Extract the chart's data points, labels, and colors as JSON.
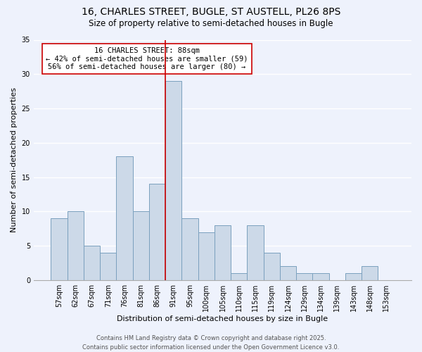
{
  "title": "16, CHARLES STREET, BUGLE, ST AUSTELL, PL26 8PS",
  "subtitle": "Size of property relative to semi-detached houses in Bugle",
  "xlabel": "Distribution of semi-detached houses by size in Bugle",
  "ylabel": "Number of semi-detached properties",
  "bar_labels": [
    "57sqm",
    "62sqm",
    "67sqm",
    "71sqm",
    "76sqm",
    "81sqm",
    "86sqm",
    "91sqm",
    "95sqm",
    "100sqm",
    "105sqm",
    "110sqm",
    "115sqm",
    "119sqm",
    "124sqm",
    "129sqm",
    "134sqm",
    "139sqm",
    "143sqm",
    "148sqm",
    "153sqm"
  ],
  "bar_values": [
    9,
    10,
    5,
    4,
    18,
    10,
    14,
    29,
    9,
    7,
    8,
    1,
    8,
    4,
    2,
    1,
    1,
    0,
    1,
    2,
    0
  ],
  "bar_color": "#ccd9e8",
  "bar_edge_color": "#7aa0be",
  "annotation_title": "16 CHARLES STREET: 88sqm",
  "annotation_line1": "← 42% of semi-detached houses are smaller (59)",
  "annotation_line2": "56% of semi-detached houses are larger (80) →",
  "vline_x_index": 6.5,
  "vline_color": "#cc0000",
  "ylim": [
    0,
    35
  ],
  "yticks": [
    0,
    5,
    10,
    15,
    20,
    25,
    30,
    35
  ],
  "footer_line1": "Contains HM Land Registry data © Crown copyright and database right 2025.",
  "footer_line2": "Contains public sector information licensed under the Open Government Licence v3.0.",
  "bg_color": "#eef2fc",
  "grid_color": "#ffffff",
  "title_fontsize": 10,
  "subtitle_fontsize": 8.5,
  "axis_label_fontsize": 8,
  "tick_fontsize": 7,
  "annotation_fontsize": 7.5,
  "footer_fontsize": 6
}
